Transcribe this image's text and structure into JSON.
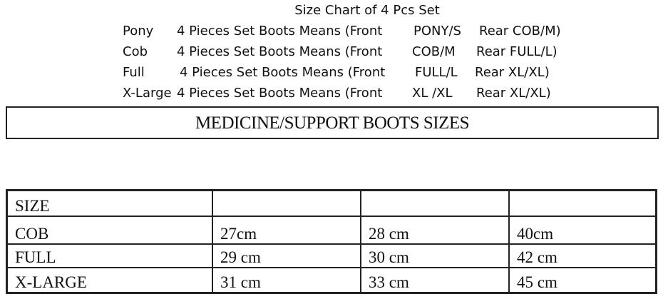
{
  "title": "Size Chart of 4 Pcs Set",
  "lines": [
    {
      "size": "Pony",
      "desc": "4 Pieces Set Boots Means (Front",
      "front": "PONY/S",
      "rear": "Rear COB/M)"
    },
    {
      "size": "Cob",
      "desc": "4 Pieces Set Boots Means (Front",
      "front": "COB/M",
      "rear": "Rear FULL/L)"
    },
    {
      "size": "Full",
      "desc": "4 Pieces Set Boots Means (Front",
      "front": "FULL/L",
      "rear": "Rear XL/XL)"
    },
    {
      "size": "X-Large",
      "desc": "4 Pieces Set Boots Means (Front",
      "front": "XL /XL",
      "rear": "Rear XL/XL)"
    }
  ],
  "banner": "MEDICINE/SUPPORT BOOTS SIZES",
  "table": {
    "header": [
      "SIZE",
      "",
      "",
      ""
    ],
    "rows": [
      [
        "COB",
        "27cm",
        "28 cm",
        "40cm"
      ],
      [
        "FULL",
        "29 cm",
        "30 cm",
        "42 cm"
      ],
      [
        "X-LARGE",
        "31 cm",
        "33 cm",
        "45 cm"
      ]
    ]
  }
}
